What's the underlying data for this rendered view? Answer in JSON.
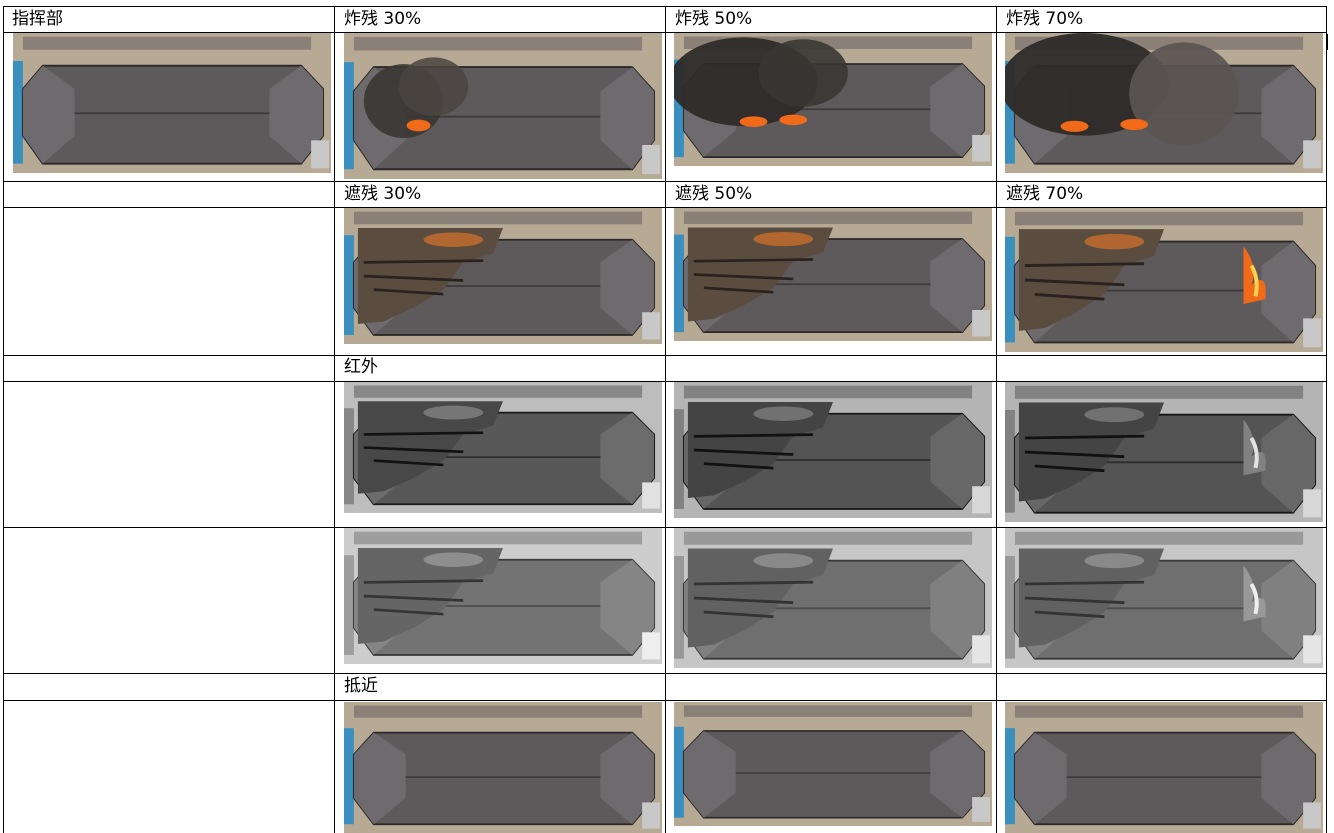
{
  "header": {
    "command_post": "指挥部",
    "blast_30": "炸残 30%",
    "blast_50": "炸残 50%",
    "blast_70": "炸残 70%"
  },
  "rows": {
    "occlusion_30": "遮残 30%",
    "occlusion_50": "遮残 50%",
    "occlusion_70": "遮残 70%",
    "infrared": "红外",
    "approach": "抵近"
  },
  "colors": {
    "grid_line": "#000000",
    "roof": "#5e5a5c",
    "ground": "#b7aa94",
    "smoke": "#2e2b29",
    "fire": "#f06a1a"
  },
  "images": [
    {
      "name": "aerial-command-post-image",
      "kind": "aerial-roof"
    },
    {
      "name": "blast-30-image",
      "kind": "aerial-smoke"
    },
    {
      "name": "blast-50-image",
      "kind": "aerial-smoke-heavy"
    },
    {
      "name": "blast-70-image",
      "kind": "aerial-smoke-heavier"
    },
    {
      "name": "occlusion-30-image",
      "kind": "aerial-damaged"
    },
    {
      "name": "occlusion-50-image",
      "kind": "aerial-damaged"
    },
    {
      "name": "occlusion-70-image",
      "kind": "aerial-damaged-fire"
    },
    {
      "name": "infrared-30-image",
      "kind": "thermal"
    },
    {
      "name": "infrared-50-image",
      "kind": "thermal"
    },
    {
      "name": "infrared-70-image",
      "kind": "thermal"
    },
    {
      "name": "infrared-b-30-image",
      "kind": "thermal-light"
    },
    {
      "name": "infrared-b-50-image",
      "kind": "thermal-light"
    },
    {
      "name": "infrared-b-70-image",
      "kind": "thermal-light"
    },
    {
      "name": "approach-1-image",
      "kind": "aerial-roof"
    },
    {
      "name": "approach-2-image",
      "kind": "aerial-roof"
    },
    {
      "name": "approach-3-image",
      "kind": "aerial-roof"
    }
  ]
}
